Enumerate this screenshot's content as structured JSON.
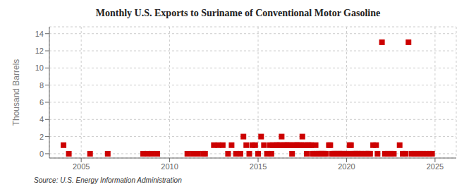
{
  "chart_data": {
    "type": "scatter",
    "title": "Monthly U.S. Exports to Suriname of Conventional Motor Gasoline",
    "ylabel": "Thousand Barrels",
    "annotations": [
      "Source: U.S. Energy Information Administration"
    ],
    "color": "#cc0000",
    "marker": "square",
    "grid": true,
    "xlim": [
      2003.2,
      2026.2
    ],
    "ylim": [
      -0.5,
      14.8
    ],
    "xticks": [
      2005,
      2010,
      2015,
      2020,
      2025
    ],
    "yticks": [
      0,
      2,
      4,
      6,
      8,
      10,
      12,
      14
    ],
    "x": [
      2004.0,
      2004.3,
      2005.5,
      2006.5,
      2008.5,
      2008.75,
      2009.0,
      2009.3,
      2011.0,
      2011.3,
      2011.6,
      2011.9,
      2012.0,
      2012.5,
      2012.75,
      2013.0,
      2013.3,
      2013.5,
      2013.75,
      2014.0,
      2014.17,
      2014.33,
      2014.5,
      2014.67,
      2014.83,
      2015.0,
      2015.17,
      2015.33,
      2015.5,
      2015.67,
      2015.75,
      2015.83,
      2016.0,
      2016.08,
      2016.17,
      2016.25,
      2016.33,
      2016.42,
      2016.5,
      2016.58,
      2016.67,
      2016.75,
      2016.83,
      2016.92,
      2017.0,
      2017.08,
      2017.17,
      2017.25,
      2017.33,
      2017.42,
      2017.5,
      2017.58,
      2017.67,
      2017.75,
      2017.83,
      2017.92,
      2018.0,
      2018.08,
      2018.17,
      2018.25,
      2018.33,
      2018.42,
      2018.5,
      2018.58,
      2018.67,
      2018.75,
      2018.83,
      2019.0,
      2019.08,
      2019.17,
      2019.25,
      2019.33,
      2019.42,
      2019.5,
      2019.58,
      2019.67,
      2019.75,
      2019.83,
      2020.0,
      2020.08,
      2020.17,
      2020.25,
      2020.33,
      2020.42,
      2020.5,
      2020.58,
      2020.67,
      2020.75,
      2020.83,
      2021.0,
      2021.08,
      2021.17,
      2021.25,
      2021.33,
      2021.5,
      2021.67,
      2021.75,
      2022.0,
      2022.17,
      2022.33,
      2022.5,
      2022.67,
      2023.0,
      2023.17,
      2023.33,
      2023.5,
      2023.67,
      2023.83,
      2024.0,
      2024.17,
      2024.33,
      2024.5,
      2024.67,
      2024.83
    ],
    "values": [
      1,
      0,
      0,
      0,
      0,
      0,
      0,
      0,
      0,
      0,
      0,
      0,
      0,
      1,
      1,
      1,
      0,
      1,
      0,
      0,
      2,
      1,
      0,
      1,
      1,
      0,
      2,
      1,
      0,
      1,
      0,
      1,
      1,
      1,
      1,
      1,
      2,
      1,
      1,
      1,
      1,
      1,
      1,
      0,
      1,
      1,
      1,
      1,
      1,
      1,
      2,
      1,
      1,
      0,
      1,
      1,
      1,
      0,
      0,
      1,
      0,
      0,
      0,
      0,
      0,
      0,
      0,
      1,
      1,
      0,
      0,
      0,
      0,
      0,
      0,
      0,
      0,
      0,
      0,
      0,
      1,
      1,
      0,
      0,
      0,
      0,
      0,
      0,
      0,
      0,
      0,
      0,
      0,
      0,
      1,
      1,
      0,
      13,
      0,
      0,
      0,
      0,
      1,
      0,
      0,
      13,
      0,
      0,
      0,
      0,
      0,
      0,
      0,
      0
    ]
  }
}
